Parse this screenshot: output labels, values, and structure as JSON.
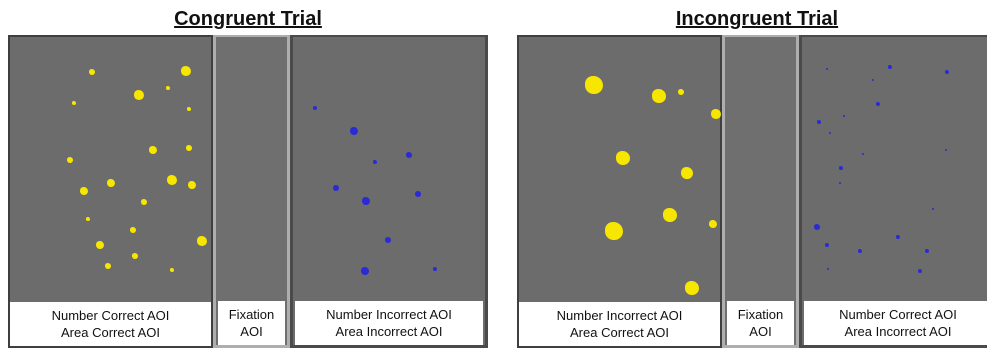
{
  "colors": {
    "yellow_dot": "#f7e600",
    "blue_dot": "#2b2bd6"
  },
  "trials": [
    {
      "title": "Congruent Trial",
      "panels": [
        {
          "line1": "Number Correct AOI",
          "line2": "Area Correct AOI"
        },
        {
          "line1": "Fixation",
          "line2": "AOI"
        },
        {
          "line1": "Number Incorrect AOI",
          "line2": "Area Incorrect AOI"
        }
      ]
    },
    {
      "title": "Incongruent Trial",
      "panels": [
        {
          "line1": "Number Incorrect AOI",
          "line2": "Area Correct AOI"
        },
        {
          "line1": "Fixation",
          "line2": "AOI"
        },
        {
          "line1": "Number Correct AOI",
          "line2": "Area Incorrect AOI"
        }
      ]
    }
  ]
}
